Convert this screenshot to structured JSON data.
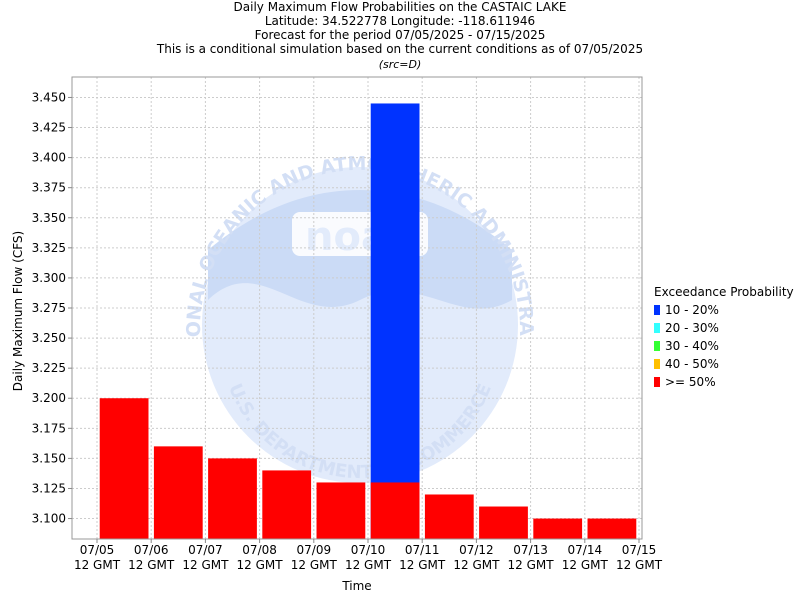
{
  "header": {
    "title": "Daily Maximum Flow Probabilities on the CASTAIC LAKE",
    "location": "Latitude: 34.522778 Longitude: -118.611946",
    "period": "Forecast for the period 07/05/2025 - 07/15/2025",
    "note": "This is a conditional simulation based on the current conditions as of 07/05/2025",
    "source": "(src=D)"
  },
  "chart_data": {
    "type": "bar",
    "title": "Daily Maximum Flow Probabilities on the CASTAIC LAKE",
    "xlabel": "Time",
    "ylabel": "Daily Maximum Flow (CFS)",
    "ylim": [
      3.083,
      3.467
    ],
    "yticks": [
      3.1,
      3.125,
      3.15,
      3.175,
      3.2,
      3.225,
      3.25,
      3.275,
      3.3,
      3.325,
      3.35,
      3.375,
      3.4,
      3.425,
      3.45
    ],
    "ytick_labels": [
      "3.100",
      "3.125",
      "3.150",
      "3.175",
      "3.200",
      "3.225",
      "3.250",
      "3.275",
      "3.300",
      "3.325",
      "3.350",
      "3.375",
      "3.400",
      "3.425",
      "3.450"
    ],
    "xticks": [
      "07/05",
      "07/06",
      "07/07",
      "07/08",
      "07/09",
      "07/10",
      "07/11",
      "07/12",
      "07/13",
      "07/14",
      "07/15"
    ],
    "xtick_sublabel": "12 GMT",
    "categories": [
      "07/05",
      "07/06",
      "07/07",
      "07/08",
      "07/09",
      "07/10",
      "07/11",
      "07/12",
      "07/13",
      "07/14"
    ],
    "series": [
      {
        "name": "10 - 20%",
        "color": "#0033ff",
        "values": [
          null,
          null,
          null,
          null,
          null,
          3.445,
          null,
          null,
          null,
          null
        ]
      },
      {
        "name": "20 - 30%",
        "color": "#33ffff",
        "values": [
          null,
          null,
          null,
          null,
          null,
          null,
          null,
          null,
          null,
          null
        ]
      },
      {
        "name": "30 - 40%",
        "color": "#33ff33",
        "values": [
          null,
          null,
          null,
          null,
          null,
          null,
          null,
          null,
          null,
          null
        ]
      },
      {
        "name": "40 - 50%",
        "color": "#ffc000",
        "values": [
          null,
          null,
          null,
          null,
          null,
          null,
          null,
          null,
          null,
          null
        ]
      },
      {
        "name": ">= 50%",
        "color": "#ff0000",
        "values": [
          3.2,
          3.16,
          3.15,
          3.14,
          3.13,
          3.13,
          3.12,
          3.11,
          3.1,
          3.1
        ]
      }
    ],
    "legend_title": "Exceedance Probability",
    "legend_position": "right",
    "grid": true
  },
  "watermark": {
    "text_top": "NATIONAL OCEANIC AND ATMOSPHERIC ADMINISTRATION",
    "text_bottom": "U.S. DEPARTMENT OF COMMERCE",
    "logo": "noaa"
  }
}
